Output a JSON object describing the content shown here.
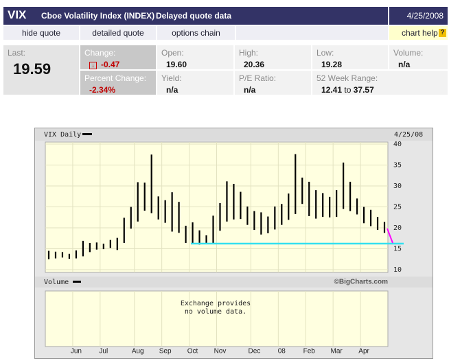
{
  "header": {
    "symbol": "VIX",
    "name": "Cboe Volatility Index (INDEX)",
    "note": "Delayed quote data",
    "date": "4/25/2008"
  },
  "tabs": [
    "hide quote",
    "detailed quote",
    "options chain",
    "chart help"
  ],
  "quote": {
    "last": {
      "label": "Last:",
      "value": "19.59"
    },
    "change": {
      "label": "Change:",
      "value": "-0.47"
    },
    "percent_change": {
      "label": "Percent Change:",
      "value": "-2.34%"
    },
    "open": {
      "label": "Open:",
      "value": "19.60"
    },
    "high": {
      "label": "High:",
      "value": "20.36"
    },
    "low": {
      "label": "Low:",
      "value": "19.28"
    },
    "volume": {
      "label": "Volume:",
      "value": "n/a"
    },
    "yield": {
      "label": "Yield:",
      "value": "n/a"
    },
    "pe_ratio": {
      "label": "P/E Ratio:",
      "value": "n/a"
    },
    "range_52w": {
      "label": "52 Week Range:",
      "low": "12.41",
      "sep": "to",
      "high": "37.57"
    }
  },
  "chart_data": {
    "type": "range",
    "title": "VIX Daily",
    "date": "4/25/08",
    "categories": [
      null,
      null,
      null,
      null,
      "Jun",
      null,
      null,
      null,
      "Jul",
      null,
      null,
      null,
      null,
      "Aug",
      null,
      null,
      null,
      "Sep",
      null,
      null,
      null,
      "Oct",
      null,
      null,
      null,
      "Nov",
      null,
      null,
      null,
      null,
      "Dec",
      null,
      null,
      null,
      "08",
      null,
      null,
      null,
      "Feb",
      null,
      null,
      null,
      "Mar",
      null,
      null,
      null,
      "Apr",
      null,
      null,
      null
    ],
    "high": [
      14.5,
      14.3,
      14.2,
      13.8,
      14.6,
      16.9,
      16.4,
      16.5,
      16.2,
      17.1,
      17.6,
      22.4,
      25.0,
      30.9,
      30.8,
      37.5,
      27.5,
      26.6,
      28.5,
      26.2,
      20.5,
      21.3,
      19.4,
      18.2,
      22.9,
      25.9,
      31.1,
      30.5,
      28.6,
      25.1,
      24.0,
      23.7,
      22.7,
      25.1,
      25.7,
      28.2,
      37.6,
      32.0,
      31.0,
      29.0,
      28.3,
      27.4,
      29.0,
      35.6,
      31.0,
      27.0,
      25.0,
      24.3,
      22.6,
      21.4
    ],
    "low": [
      12.5,
      12.7,
      12.9,
      12.6,
      12.7,
      13.2,
      14.2,
      14.8,
      14.9,
      15.2,
      14.7,
      16.4,
      19.8,
      21.5,
      24.1,
      23.5,
      22.0,
      21.2,
      19.1,
      18.8,
      16.4,
      16.1,
      16.0,
      16.4,
      16.2,
      19.3,
      21.5,
      22.0,
      22.1,
      20.7,
      19.5,
      18.4,
      18.7,
      19.6,
      20.7,
      21.9,
      23.3,
      25.7,
      22.8,
      22.2,
      22.6,
      22.5,
      22.6,
      24.5,
      24.0,
      23.2,
      21.1,
      20.4,
      19.5,
      18.8
    ],
    "color": "#000000",
    "ylim": [
      10,
      40
    ],
    "yticks": [
      10,
      15,
      20,
      25,
      30,
      35,
      40
    ],
    "grid": true,
    "volume_title": "Volume",
    "volume_note": [
      "Exchange provides",
      "no volume data."
    ],
    "credit": "©BigCharts.com"
  }
}
